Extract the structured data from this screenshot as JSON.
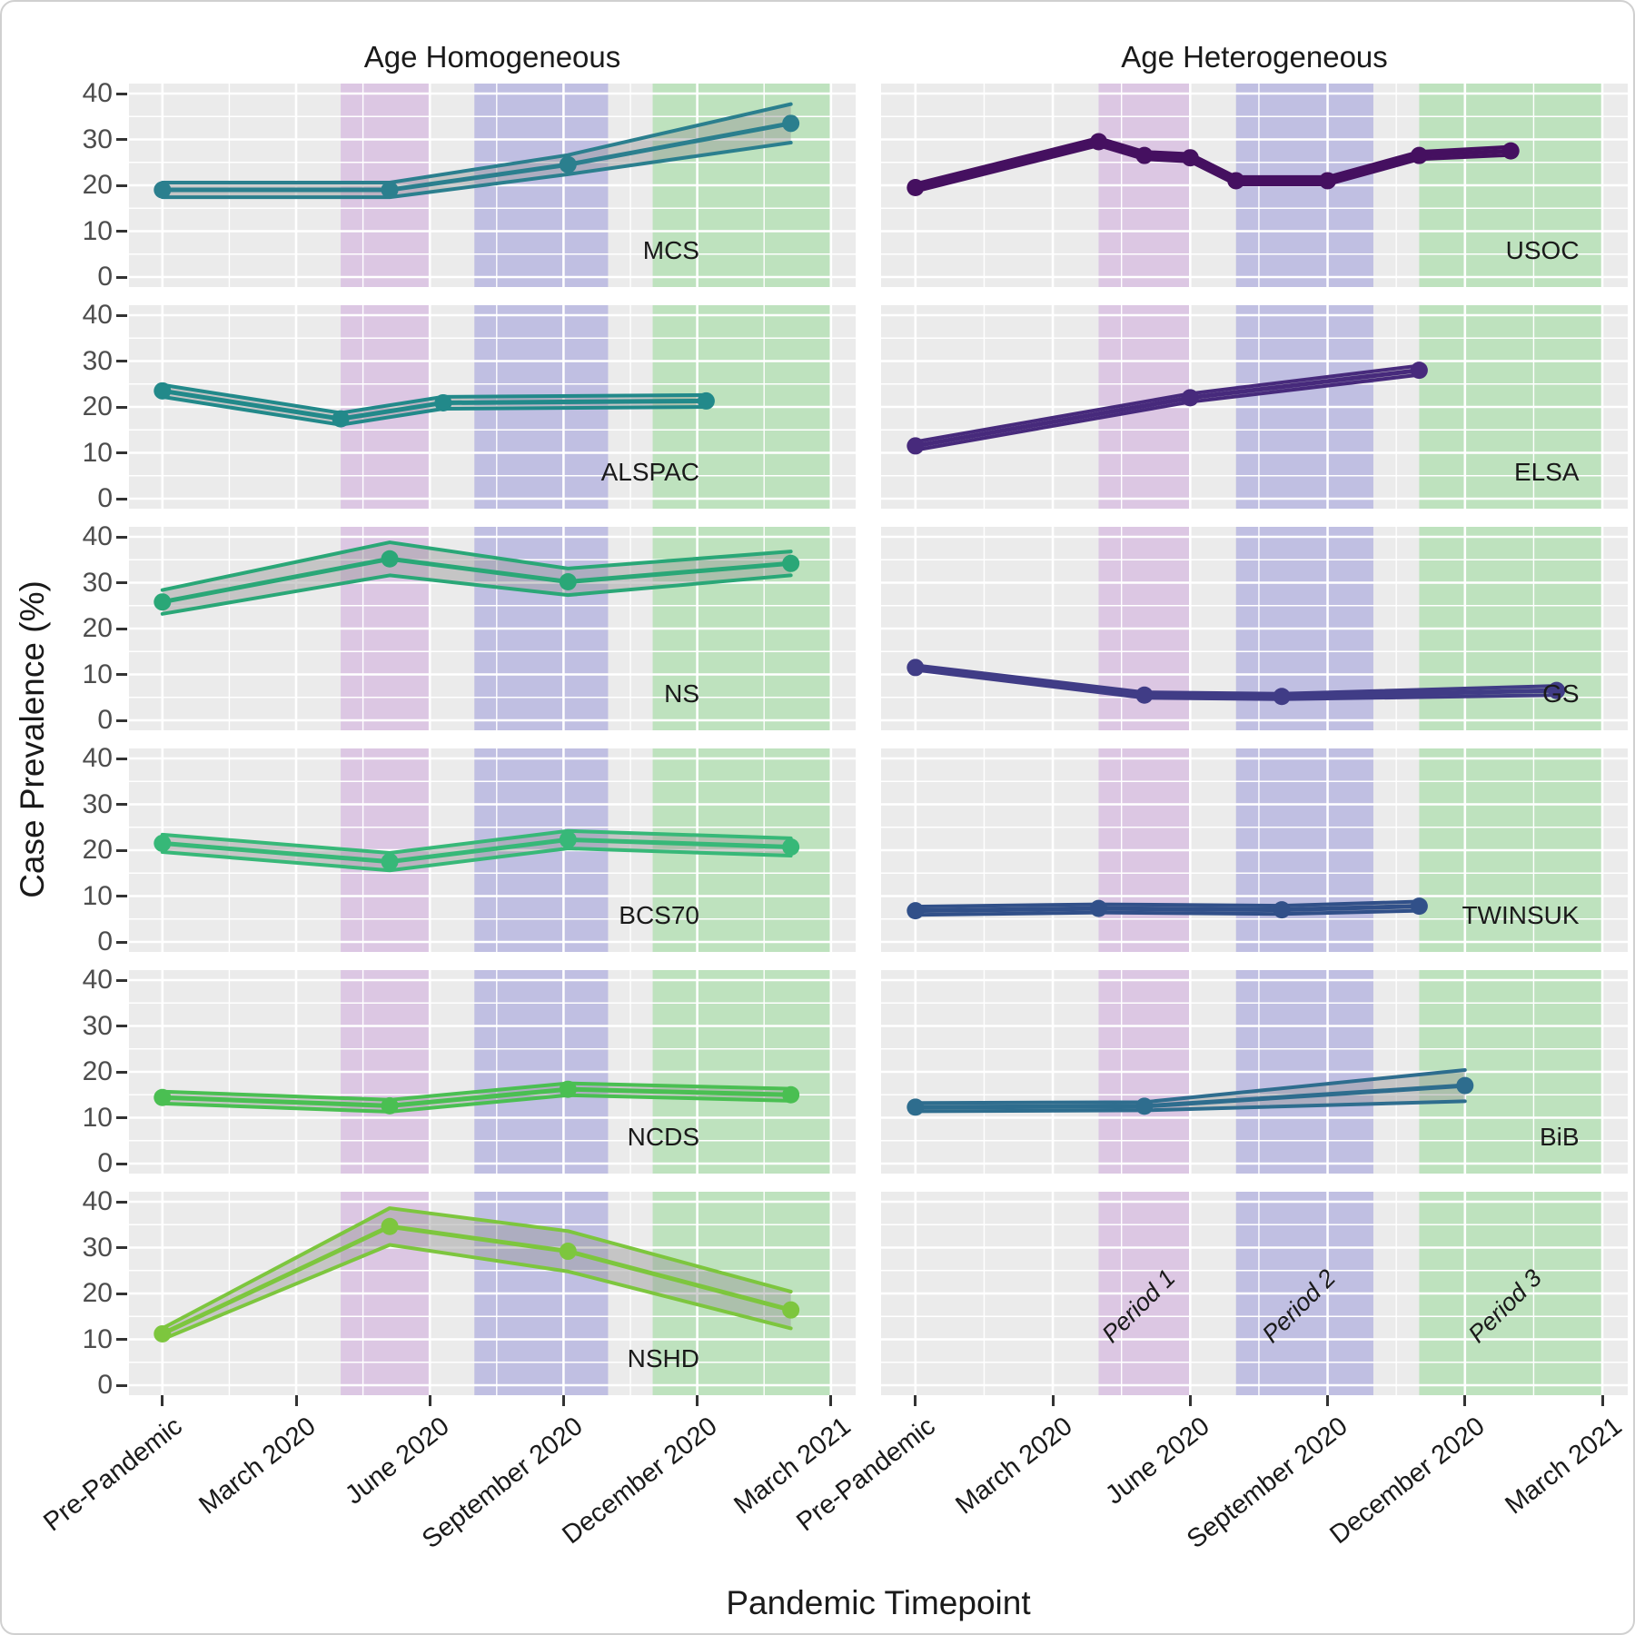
{
  "figure": {
    "col_titles": [
      "Age Homogeneous",
      "Age Heterogeneous"
    ],
    "y_axis_title": "Case Prevalence (%)",
    "x_axis_title": "Pandemic Timepoint"
  },
  "axes": {
    "x_tick_labels": [
      "Pre-Pandemic",
      "March 2020",
      "June 2020",
      "September 2020",
      "December 2020",
      "March 2021"
    ],
    "x_tick_months": [
      0,
      3,
      6,
      9,
      12,
      15
    ],
    "y_tick_labels": [
      "0",
      "10",
      "20",
      "30",
      "40"
    ],
    "y_tick_values": [
      0,
      10,
      20,
      30,
      40
    ],
    "y_range": [
      0,
      40
    ]
  },
  "periods": [
    {
      "label": "Period 1",
      "start_month": 4,
      "end_month": 6,
      "fill": "rgba(196,141,216,0.38)"
    },
    {
      "label": "Period 2",
      "start_month": 7,
      "end_month": 10,
      "fill": "rgba(124,122,212,0.38)"
    },
    {
      "label": "Period 3",
      "start_month": 11,
      "end_month": 15,
      "fill": "rgba(118,212,118,0.38)"
    }
  ],
  "chart_data": {
    "type": "line",
    "title": "",
    "xlabel": "Pandemic Timepoint",
    "ylabel": "Case Prevalence (%)",
    "ylim": [
      0,
      40
    ],
    "grid": "on",
    "legend": "none (cohort names annotated inside each facet)",
    "x_unit": "months on shared timeline: Pre-Pandemic=0, March 2020=3, June 2020=6, September 2020=9, December 2020=12, March 2021=15",
    "facet_columns": [
      "Age Homogeneous",
      "Age Heterogeneous"
    ],
    "facets": [
      {
        "cohort": "MCS",
        "column": "Age Homogeneous",
        "row": 1,
        "color": "#2b7f8e",
        "x_months": [
          0,
          5.1,
          9.1,
          14.1
        ],
        "values": [
          19,
          19,
          24.5,
          33.5
        ],
        "ci_half_width": [
          1.6,
          1.6,
          2.1,
          4.2
        ]
      },
      {
        "cohort": "USOC",
        "column": "Age Heterogeneous",
        "row": 1,
        "color": "#451060",
        "x_months": [
          0,
          4,
          5,
          6,
          7,
          9,
          11,
          13
        ],
        "values": [
          19.5,
          29.5,
          26.5,
          26,
          21,
          21,
          26.5,
          27.5
        ],
        "ci_half_width": [
          0.8,
          0.8,
          0.8,
          0.8,
          0.8,
          0.8,
          0.8,
          0.9
        ]
      },
      {
        "cohort": "ALSPAC",
        "column": "Age Homogeneous",
        "row": 2,
        "color": "#22898a",
        "x_months": [
          0,
          4,
          6.3,
          12.2
        ],
        "values": [
          23.5,
          17.4,
          20.9,
          21.3
        ],
        "ci_half_width": [
          1.3,
          1.3,
          1.3,
          1.3
        ]
      },
      {
        "cohort": "ELSA",
        "column": "Age Heterogeneous",
        "row": 2,
        "color": "#472a7c",
        "x_months": [
          0,
          6,
          11
        ],
        "values": [
          11.5,
          22,
          28
        ],
        "ci_half_width": [
          0.9,
          0.9,
          1.0
        ]
      },
      {
        "cohort": "NS",
        "column": "Age Homogeneous",
        "row": 3,
        "color": "#2aa777",
        "x_months": [
          0,
          5.1,
          9.1,
          14.1
        ],
        "values": [
          25.8,
          35.2,
          30.2,
          34.2
        ],
        "ci_half_width": [
          2.6,
          3.6,
          2.9,
          2.6
        ]
      },
      {
        "cohort": "GS",
        "column": "Age Heterogeneous",
        "row": 3,
        "color": "#403c86",
        "x_months": [
          0,
          5,
          8,
          14
        ],
        "values": [
          11.5,
          5.5,
          5.2,
          6.5
        ],
        "ci_half_width": [
          0.5,
          0.6,
          0.6,
          1.0
        ]
      },
      {
        "cohort": "BCS70",
        "column": "Age Homogeneous",
        "row": 4,
        "color": "#37b878",
        "x_months": [
          0,
          5.1,
          9.1,
          14.1
        ],
        "values": [
          21.5,
          17.5,
          22.3,
          20.7
        ],
        "ci_half_width": [
          1.9,
          1.9,
          1.9,
          1.9
        ]
      },
      {
        "cohort": "TWINSUK",
        "column": "Age Heterogeneous",
        "row": 4,
        "color": "#315089",
        "x_months": [
          0,
          4,
          8,
          11
        ],
        "values": [
          6.8,
          7.3,
          7.0,
          7.8
        ],
        "ci_half_width": [
          0.9,
          0.9,
          0.9,
          1.0
        ]
      },
      {
        "cohort": "NCDS",
        "column": "Age Homogeneous",
        "row": 5,
        "color": "#4abf52",
        "x_months": [
          0,
          5.1,
          9.1,
          14.1
        ],
        "values": [
          14.4,
          12.6,
          16.2,
          15.0
        ],
        "ci_half_width": [
          1.3,
          1.3,
          1.3,
          1.3
        ]
      },
      {
        "cohort": "BiB",
        "column": "Age Heterogeneous",
        "row": 5,
        "color": "#2e6d8e",
        "x_months": [
          0,
          5,
          12
        ],
        "values": [
          12.3,
          12.5,
          17
        ],
        "ci_half_width": [
          0.9,
          0.9,
          3.4
        ]
      },
      {
        "cohort": "NSHD",
        "column": "Age Homogeneous",
        "row": 6,
        "color": "#7dc63e",
        "x_months": [
          0,
          5.1,
          9.1,
          14.1
        ],
        "values": [
          11.2,
          34.6,
          29.2,
          16.4
        ],
        "ci_half_width": [
          1.2,
          4.0,
          4.4,
          4.0
        ]
      },
      {
        "cohort": null,
        "column": "Age Heterogeneous",
        "row": 6,
        "color": null,
        "x_months": [],
        "values": [],
        "ci_half_width": [],
        "period_labels_shown": true
      }
    ]
  },
  "styles": {
    "panel_bg": "#EBEBEB",
    "grid_color": "#FFFFFF",
    "ribbon_fill": "rgba(150,150,150,0.45)",
    "tick_label_color": "#4D4D4D",
    "text_color": "#1A1A1A",
    "axis_tick_color": "#333333"
  }
}
